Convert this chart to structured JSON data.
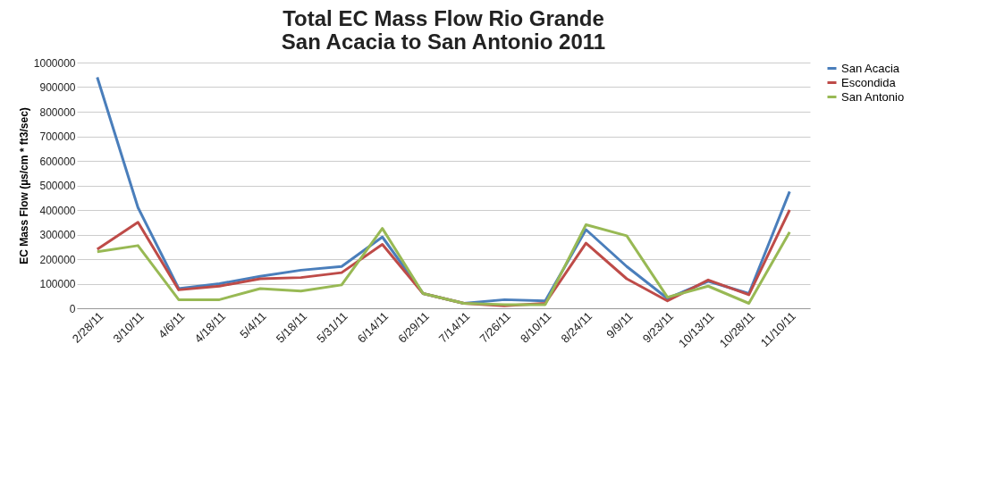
{
  "chart_data": {
    "type": "line",
    "title": [
      "Total EC Mass Flow Rio Grande",
      "San Acacia to San Antonio 2011"
    ],
    "ylabel": "EC Mass Flow (µs/cm * ft3/sec)",
    "categories": [
      "2/28/11",
      "3/10/11",
      "4/6/11",
      "4/18/11",
      "5/4/11",
      "5/18/11",
      "5/31/11",
      "6/14/11",
      "6/29/11",
      "7/14/11",
      "7/26/11",
      "8/10/11",
      "8/24/11",
      "9/9/11",
      "9/23/11",
      "10/13/11",
      "10/28/11",
      "11/10/11"
    ],
    "series": [
      {
        "name": "San Acacia",
        "color": "#4a7ebb",
        "values": [
          940000,
          410000,
          80000,
          100000,
          130000,
          155000,
          170000,
          290000,
          60000,
          20000,
          35000,
          30000,
          320000,
          170000,
          40000,
          110000,
          60000,
          475000
        ]
      },
      {
        "name": "Escondida",
        "color": "#be4b48",
        "values": [
          240000,
          350000,
          75000,
          90000,
          120000,
          125000,
          145000,
          260000,
          60000,
          20000,
          10000,
          20000,
          265000,
          120000,
          30000,
          115000,
          55000,
          400000
        ]
      },
      {
        "name": "San Antonio",
        "color": "#98b954",
        "values": [
          230000,
          255000,
          35000,
          35000,
          80000,
          70000,
          95000,
          325000,
          60000,
          20000,
          15000,
          15000,
          340000,
          295000,
          45000,
          90000,
          20000,
          310000
        ]
      }
    ],
    "ylim": [
      0,
      1000000
    ],
    "yticks": [
      0,
      100000,
      200000,
      300000,
      400000,
      500000,
      600000,
      700000,
      800000,
      900000,
      1000000
    ],
    "grid": "y",
    "legend": "right",
    "marker": "none",
    "line_style": "solid"
  }
}
